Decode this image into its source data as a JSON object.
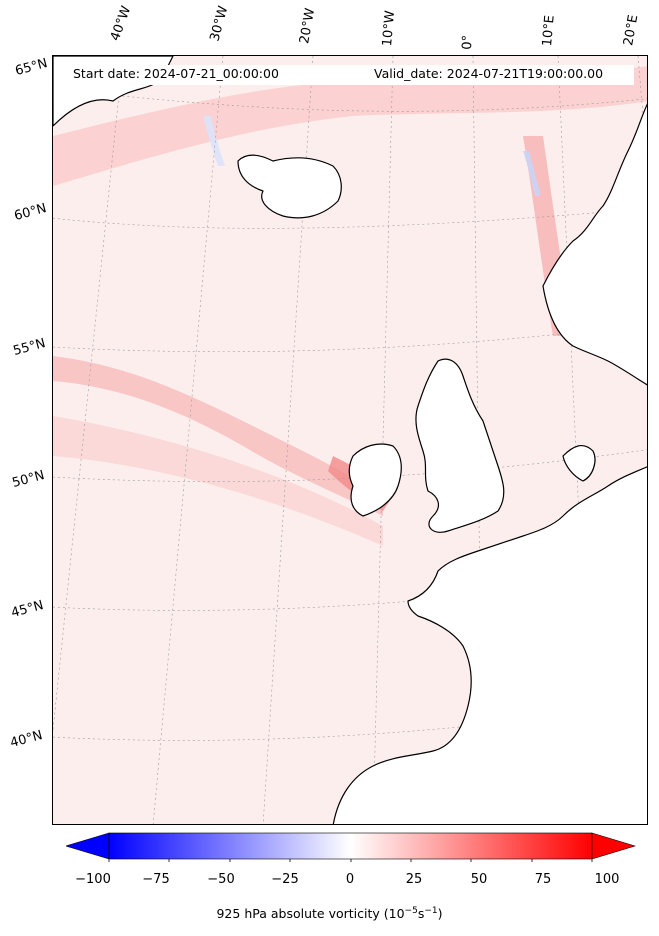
{
  "header": {
    "start_date": "Start date: 2024-07-21_00:00:00",
    "valid_date": "Valid_date: 2024-07-21T19:00:00.00"
  },
  "longitude_labels": [
    "40°W",
    "30°W",
    "20°W",
    "10°W",
    "0°",
    "10°E",
    "20°E"
  ],
  "latitude_labels": [
    "65°N",
    "60°N",
    "55°N",
    "50°N",
    "45°N",
    "40°N"
  ],
  "colorbar": {
    "ticks": [
      "−100",
      "−75",
      "−50",
      "−25",
      "0",
      "25",
      "50",
      "75",
      "100"
    ],
    "title": "925 hPa absolute vorticity (10",
    "title_exp1": "−5",
    "title_mid": "s",
    "title_exp2": "−1",
    "title_end": ")",
    "min_color": "#0000ff",
    "mid_color": "#ffffff",
    "max_color": "#ff0000"
  },
  "field": {
    "background_color": "#fdeeee",
    "land_color": "#ffffff",
    "coastline_color": "#000000"
  }
}
